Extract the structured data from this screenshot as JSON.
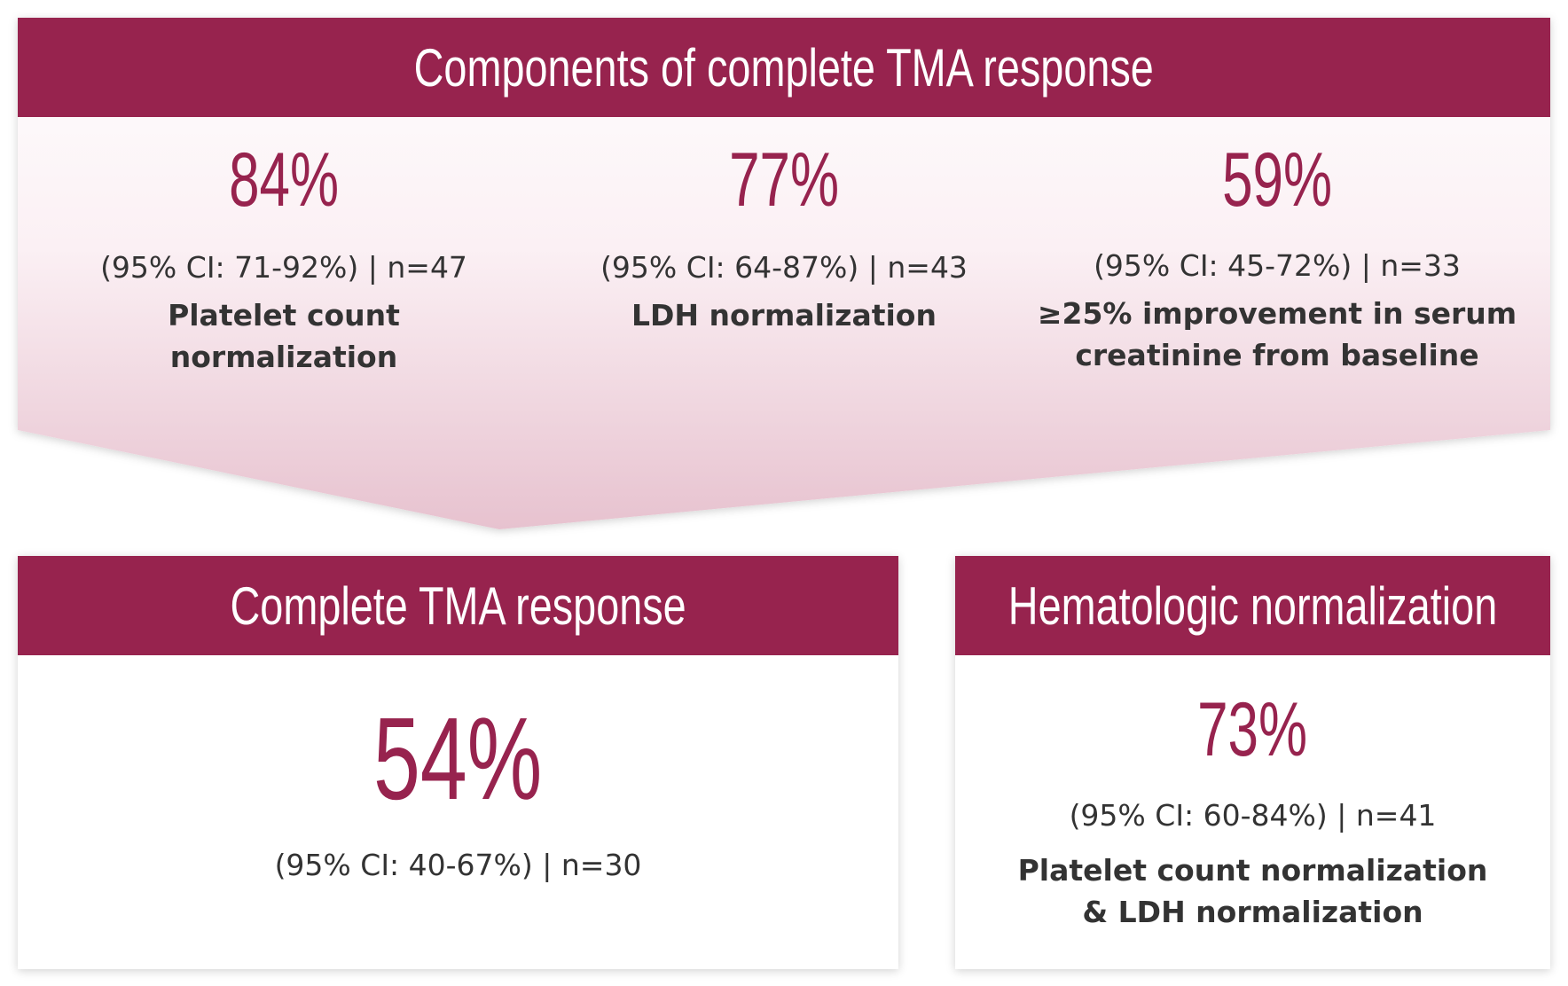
{
  "colors": {
    "accent": "#97234e",
    "text": "#333333",
    "funnel_gradient_top": "#ffffff",
    "funnel_gradient_bottom": "#e7c2cf"
  },
  "components_panel": {
    "title": "Components of complete TMA response",
    "items": [
      {
        "percent": "84%",
        "ci": "(95% CI: 71-92%) | n=47",
        "label_lines": [
          "Platelet count",
          "normalization"
        ]
      },
      {
        "percent": "77%",
        "ci": "(95% CI: 64-87%) | n=43",
        "label_lines": [
          "LDH normalization"
        ]
      },
      {
        "percent": "59%",
        "ci": "(95% CI: 45-72%) | n=33",
        "label_lines": [
          "≥25% improvement in serum",
          "creatinine from baseline"
        ]
      }
    ]
  },
  "complete_response": {
    "title": "Complete TMA response",
    "percent": "54%",
    "ci": "(95% CI: 40-67%) | n=30"
  },
  "hematologic": {
    "title": "Hematologic normalization",
    "percent": "73%",
    "ci": "(95% CI: 60-84%) | n=41",
    "label_lines": [
      "Platelet count normalization",
      "& LDH normalization"
    ]
  }
}
